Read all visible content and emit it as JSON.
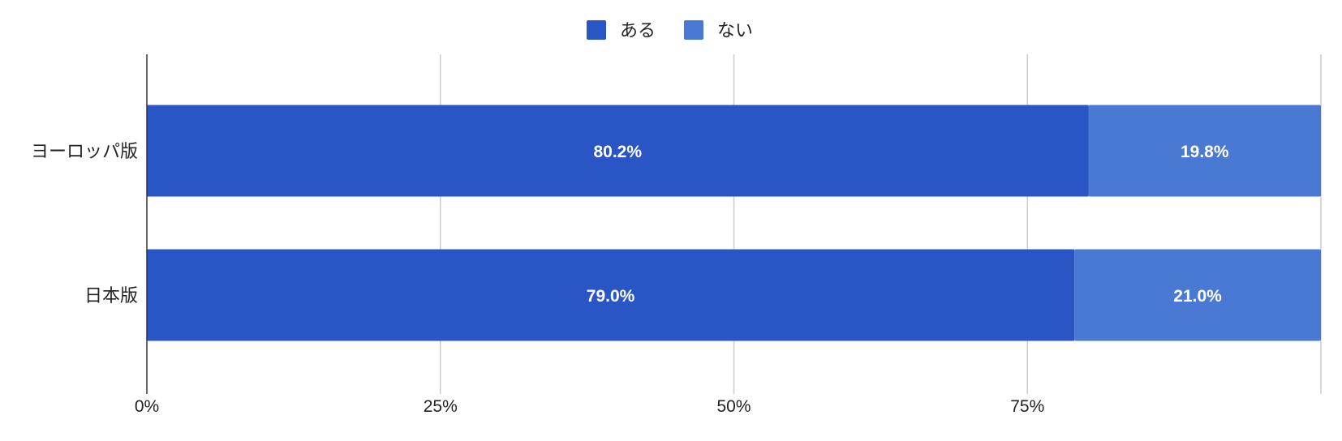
{
  "chart_data": {
    "type": "bar",
    "orientation": "horizontal",
    "stacked": "percent",
    "categories": [
      "ヨーロッパ版",
      "日本版"
    ],
    "series": [
      {
        "name": "ある",
        "values": [
          80.2,
          79.0
        ],
        "labels": [
          "80.2%",
          "79.0%"
        ],
        "color": "#2a55c5"
      },
      {
        "name": "ない",
        "values": [
          19.8,
          21.0
        ],
        "labels": [
          "19.8%",
          "21.0%"
        ],
        "color": "#4a79d4"
      }
    ],
    "xlim": [
      0,
      100
    ],
    "xticks": [
      0,
      25,
      50,
      75
    ],
    "xtick_labels": [
      "0%",
      "25%",
      "50%",
      "75%"
    ],
    "grid": true,
    "legend_position": "top-center",
    "title": "",
    "xlabel": "",
    "ylabel": ""
  }
}
